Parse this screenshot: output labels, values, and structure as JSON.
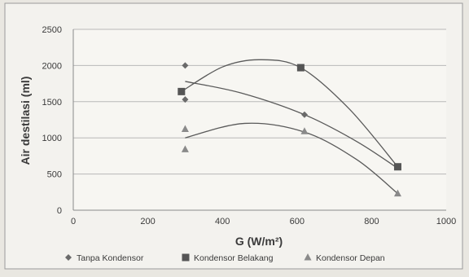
{
  "chart_data": {
    "type": "scatter",
    "xlabel": "G (W/m²)",
    "ylabel": "Air destilasi (ml)",
    "xlim": [
      0,
      1000
    ],
    "ylim": [
      0,
      2500
    ],
    "xticks": [
      0,
      200,
      400,
      600,
      800,
      1000
    ],
    "yticks": [
      0,
      500,
      1000,
      1500,
      2000,
      2500
    ],
    "grid": "horizontal",
    "legend_position": "bottom",
    "series": [
      {
        "name": "Tanpa Kondensor",
        "marker": "diamond",
        "color": "#6a6a6a",
        "points": [
          [
            300,
            2000
          ],
          [
            300,
            1530
          ],
          [
            620,
            1320
          ],
          [
            870,
            600
          ]
        ],
        "trend": [
          [
            300,
            1780
          ],
          [
            450,
            1620
          ],
          [
            620,
            1320
          ],
          [
            760,
            950
          ],
          [
            870,
            580
          ]
        ]
      },
      {
        "name": "Kondensor Belakang",
        "marker": "square",
        "color": "#555555",
        "points": [
          [
            290,
            1640
          ],
          [
            610,
            1970
          ],
          [
            870,
            600
          ]
        ],
        "trend": [
          [
            290,
            1640
          ],
          [
            400,
            1980
          ],
          [
            500,
            2080
          ],
          [
            610,
            1970
          ],
          [
            740,
            1400
          ],
          [
            870,
            600
          ]
        ]
      },
      {
        "name": "Kondensor Depan",
        "marker": "triangle",
        "color": "#8a8a8a",
        "points": [
          [
            300,
            1120
          ],
          [
            300,
            840
          ],
          [
            620,
            1090
          ],
          [
            870,
            230
          ]
        ],
        "trend": [
          [
            300,
            1000
          ],
          [
            460,
            1200
          ],
          [
            620,
            1080
          ],
          [
            760,
            700
          ],
          [
            870,
            230
          ]
        ]
      }
    ]
  }
}
